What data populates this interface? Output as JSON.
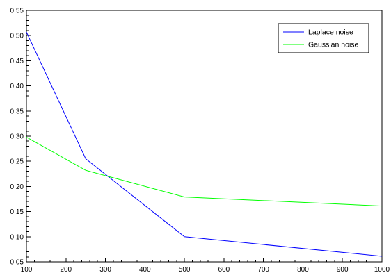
{
  "chart_data": {
    "type": "line",
    "x": [
      100,
      250,
      500,
      1000
    ],
    "series": [
      {
        "name": "Laplace noise",
        "color": "#0000ff",
        "values": [
          0.507,
          0.255,
          0.1,
          0.061
        ]
      },
      {
        "name": "Gaussian noise",
        "color": "#00ff00",
        "values": [
          0.298,
          0.232,
          0.179,
          0.161
        ]
      }
    ],
    "xlim": [
      100,
      1000
    ],
    "ylim": [
      0.05,
      0.55
    ],
    "xticks": [
      100,
      200,
      300,
      400,
      500,
      600,
      700,
      800,
      900,
      1000
    ],
    "yticks": [
      0.05,
      0.1,
      0.15,
      0.2,
      0.25,
      0.3,
      0.35,
      0.4,
      0.45,
      0.5,
      0.55
    ],
    "ytick_labels": [
      "0.05",
      "0.10",
      "0.15",
      "0.20",
      "0.25",
      "0.30",
      "0.35",
      "0.40",
      "0.45",
      "0.50",
      "0.55"
    ],
    "x_minor_per_major": 4,
    "y_minor_per_major": 4,
    "grid": false,
    "legend_position": "top-right",
    "title": "",
    "xlabel": "",
    "ylabel": ""
  }
}
